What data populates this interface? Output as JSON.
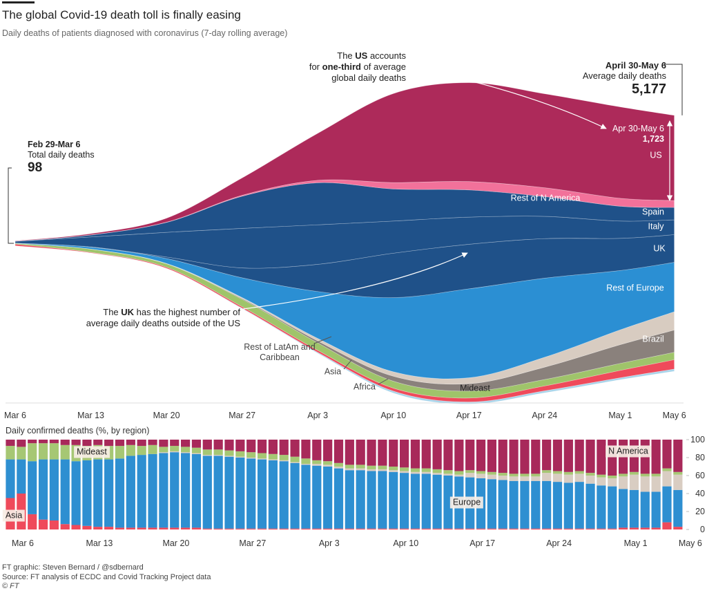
{
  "chart_data": [
    {
      "type": "stream",
      "title": "The global Covid-19 death toll is finally easing",
      "subtitle": "Daily deaths of patients diagnosed with coronavirus (7-day rolling average)",
      "x": [
        "Mar 6",
        "Mar 13",
        "Mar 20",
        "Mar 27",
        "Apr 3",
        "Apr 10",
        "Apr 17",
        "Apr 24",
        "May 1",
        "May 6"
      ],
      "series": [
        {
          "name": "Africa",
          "color": "#a9d4ea",
          "values": [
            0,
            2,
            3,
            10,
            20,
            40,
            40,
            40,
            40,
            44
          ]
        },
        {
          "name": "Asia",
          "color": "#ef4a5b",
          "values": [
            34,
            12,
            20,
            30,
            40,
            60,
            80,
            100,
            150,
            190
          ]
        },
        {
          "name": "Mideast",
          "color": "#9fc46a",
          "values": [
            15,
            65,
            70,
            150,
            150,
            140,
            140,
            130,
            140,
            150
          ]
        },
        {
          "name": "Brazil",
          "color": "#8a817c",
          "values": [
            0,
            0,
            2,
            15,
            40,
            100,
            150,
            250,
            380,
            450
          ]
        },
        {
          "name": "Rest of LatAm and Caribbean",
          "color": "#d8ccc1",
          "values": [
            0,
            1,
            5,
            20,
            50,
            90,
            120,
            200,
            300,
            370
          ]
        },
        {
          "name": "Rest of Europe",
          "color": "#2b8fd3",
          "values": [
            5,
            40,
            100,
            400,
            950,
            1500,
            1800,
            1600,
            1200,
            1000
          ]
        },
        {
          "name": "UK",
          "color": "#1f5189",
          "values": [
            0,
            5,
            30,
            200,
            550,
            900,
            900,
            800,
            650,
            560
          ]
        },
        {
          "name": "Italy",
          "color": "#1f5189",
          "values": [
            35,
            200,
            500,
            800,
            800,
            650,
            550,
            450,
            350,
            300
          ]
        },
        {
          "name": "Spain",
          "color": "#1f5189",
          "values": [
            2,
            40,
            200,
            650,
            850,
            650,
            550,
            400,
            300,
            250
          ]
        },
        {
          "name": "Rest of N America",
          "color": "#f2719a",
          "values": [
            1,
            3,
            5,
            20,
            50,
            130,
            170,
            180,
            160,
            140
          ]
        },
        {
          "name": "US",
          "color": "#ad2a5a",
          "values": [
            6,
            25,
            80,
            350,
            950,
            1800,
            2000,
            1900,
            1850,
            1723
          ]
        }
      ],
      "annotations": {
        "start": {
          "title": "Feb 29-Mar 6",
          "subtitle": "Total daily deaths",
          "value": 98
        },
        "end": {
          "title": "April 30-May 6",
          "subtitle": "Average daily deaths",
          "value": 5177,
          "label": "5,177"
        },
        "us_callout": {
          "title": "Apr 30-May 6",
          "value": 1723,
          "label": "1,723"
        },
        "notes": [
          {
            "lines": [
              [
                {
                  "text": "The "
                },
                {
                  "text": "US",
                  "bold": true
                },
                {
                  "text": " accounts"
                }
              ],
              [
                {
                  "text": "for "
                },
                {
                  "text": "one-third",
                  "bold": true
                },
                {
                  "text": " of average"
                }
              ],
              [
                {
                  "text": "global daily deaths"
                }
              ]
            ]
          },
          {
            "lines": [
              [
                {
                  "text": "The "
                },
                {
                  "text": "UK",
                  "bold": true
                },
                {
                  "text": " has the highest number of"
                }
              ],
              [
                {
                  "text": "average daily deaths outside of the US"
                }
              ]
            ]
          }
        ]
      }
    },
    {
      "type": "stacked_bar_100",
      "title": "Daily confirmed deaths (%, by region)",
      "categories": [
        "Mar 6",
        null,
        null,
        null,
        null,
        null,
        null,
        "Mar 13",
        null,
        null,
        null,
        null,
        null,
        null,
        "Mar 20",
        null,
        null,
        null,
        null,
        null,
        null,
        "Mar 27",
        null,
        null,
        null,
        null,
        null,
        null,
        "Apr 3",
        null,
        null,
        null,
        null,
        null,
        null,
        "Apr 10",
        null,
        null,
        null,
        null,
        null,
        null,
        "Apr 17",
        null,
        null,
        null,
        null,
        null,
        null,
        "Apr 24",
        null,
        null,
        null,
        null,
        null,
        null,
        "May 1",
        null,
        null,
        null,
        null,
        "May 6"
      ],
      "ylim": [
        0,
        100
      ],
      "yticks": [
        0,
        20,
        40,
        60,
        80,
        100
      ],
      "series": [
        {
          "name": "Asia",
          "color": "#ef4a5b",
          "values": [
            35,
            40,
            17,
            11,
            10,
            6,
            5,
            4,
            3,
            3,
            2,
            2,
            2,
            2,
            2,
            2,
            2,
            2,
            1,
            1,
            1,
            1,
            1,
            1,
            1,
            1,
            1,
            1,
            1,
            1,
            1,
            1,
            1,
            1,
            1,
            1,
            1,
            1,
            1,
            1,
            1,
            1,
            1,
            1,
            1,
            1,
            1,
            1,
            1,
            1,
            1,
            1,
            1,
            1,
            1,
            1,
            2,
            2,
            2,
            2,
            8,
            3
          ]
        },
        {
          "name": "Europe",
          "color": "#2e8fd1",
          "values": [
            43,
            38,
            59,
            67,
            68,
            72,
            71,
            73,
            75,
            75,
            77,
            80,
            81,
            82,
            83,
            84,
            83,
            82,
            81,
            81,
            80,
            79,
            78,
            77,
            76,
            75,
            73,
            71,
            70,
            69,
            67,
            65,
            65,
            64,
            64,
            63,
            62,
            61,
            61,
            60,
            59,
            58,
            57,
            56,
            55,
            54,
            53,
            53,
            53,
            53,
            52,
            51,
            52,
            50,
            48,
            47,
            43,
            42,
            40,
            40,
            40,
            41
          ]
        },
        {
          "color": "#d9cdc2",
          "values": [
            0,
            0,
            0,
            0,
            0,
            0,
            0,
            0,
            0,
            0,
            0,
            0,
            0,
            0,
            1,
            1,
            1,
            1,
            1,
            1,
            1,
            1,
            1,
            1,
            1,
            1,
            1,
            1,
            2,
            2,
            2,
            2,
            2,
            2,
            2,
            2,
            2,
            2,
            2,
            2,
            2,
            2,
            5,
            5,
            5,
            5,
            5,
            5,
            5,
            9,
            9,
            9,
            9,
            9,
            9,
            9,
            14,
            17,
            17,
            17,
            17,
            17
          ]
        },
        {
          "name": "Mideast",
          "color": "#a6c774",
          "values": [
            15,
            14,
            20,
            18,
            18,
            16,
            18,
            16,
            16,
            15,
            14,
            12,
            10,
            10,
            6,
            6,
            6,
            6,
            6,
            6,
            6,
            6,
            6,
            6,
            6,
            6,
            6,
            6,
            4,
            4,
            4,
            4,
            4,
            4,
            4,
            4,
            4,
            4,
            4,
            4,
            4,
            4,
            3,
            3,
            3,
            3,
            3,
            3,
            3,
            3,
            3,
            3,
            3,
            3,
            3,
            3,
            3,
            3,
            3,
            3,
            3,
            3
          ]
        },
        {
          "name": "N America",
          "color": "#a8295a",
          "values": [
            7,
            8,
            4,
            4,
            4,
            6,
            6,
            7,
            6,
            7,
            7,
            6,
            7,
            6,
            8,
            7,
            8,
            9,
            11,
            11,
            12,
            13,
            14,
            15,
            16,
            17,
            19,
            21,
            23,
            24,
            26,
            28,
            28,
            29,
            29,
            30,
            31,
            32,
            32,
            33,
            34,
            35,
            34,
            35,
            36,
            37,
            38,
            38,
            38,
            34,
            35,
            36,
            35,
            37,
            39,
            40,
            38,
            36,
            38,
            38,
            32,
            36
          ]
        }
      ]
    }
  ],
  "footer": {
    "credit": "FT graphic: Steven Bernard / @sdbernard",
    "source": "Source: FT analysis of ECDC and Covid Tracking Project data",
    "copyright": "© FT"
  }
}
